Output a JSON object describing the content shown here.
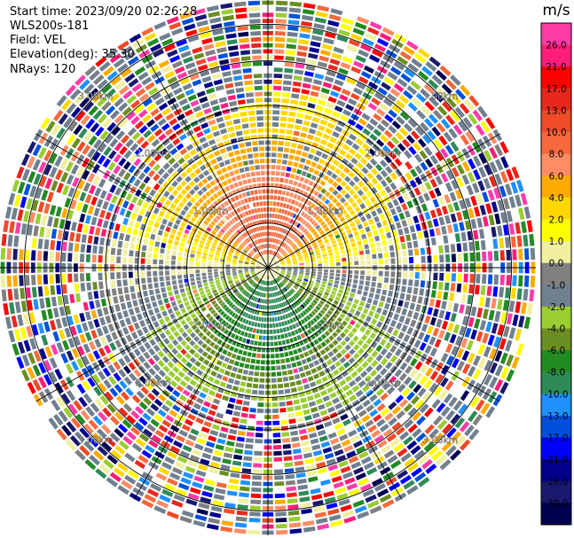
{
  "header": {
    "start_time": "Start time: 2023/09/20 02:26:28",
    "instrument": "WLS200s-181",
    "field": "Field: VEL",
    "elevation": "Elevation(deg): 35.30",
    "nrays": "NRays: 120"
  },
  "chart_data": {
    "type": "heatmap",
    "subtype": "polar-ppi",
    "field": "VEL",
    "units": "m/s",
    "nrays": 120,
    "elevation_deg": 35.3,
    "range_rings_km": [
      1.0,
      2.0,
      3.0
    ],
    "range_labels": [
      "1.00km",
      "2.00km",
      "3.00km"
    ],
    "max_range_km": 3.3,
    "colorbar": {
      "label": "m/s",
      "ticks": [
        "26.0",
        "21.0",
        "17.0",
        "13.0",
        "10.0",
        "8.0",
        "6.0",
        "4.0",
        "2.0",
        "1.0",
        "0.0",
        "-1.0",
        "-2.0",
        "-4.0",
        "-6.0",
        "-8.0",
        "-10.0",
        "-13.0",
        "-17.0",
        "-21.0",
        "-26.0",
        "-30.0"
      ],
      "colors": [
        "#ff3ca8",
        "#ff1e78",
        "#ff0000",
        "#e8281e",
        "#f04a28",
        "#f5693c",
        "#ff8c64",
        "#ffaa00",
        "#ffd700",
        "#ffff00",
        "#f0f0a0",
        "#808080",
        "#708090",
        "#9acd32",
        "#6b8e23",
        "#228b22",
        "#2e8b57",
        "#1e90ff",
        "#0050dc",
        "#0000ff",
        "#00008b",
        "#191970",
        "#000050"
      ]
    },
    "pattern": {
      "positive_direction": "north",
      "negative_direction": "south",
      "dominant_positive_near": "4.0 to 8.0",
      "dominant_negative_near": "-6.0 to -8.0",
      "clean_radius_km": 1.9,
      "noisy_outer_region": true
    }
  }
}
